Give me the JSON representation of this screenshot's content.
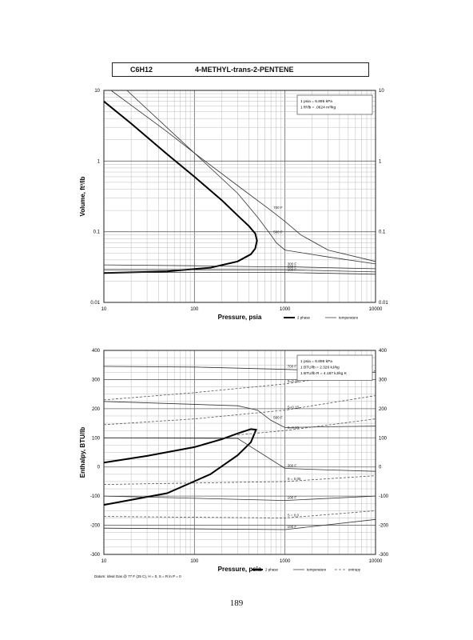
{
  "header": {
    "formula": "C6H12",
    "compound": "4-METHYL-trans-2-PENTENE"
  },
  "page_number": "189",
  "chart_data": [
    {
      "type": "line",
      "xscale": "log",
      "yscale": "log",
      "xlabel": "Pressure,  psia",
      "ylabel": "Volume,  ft^3/lb",
      "xlim": [
        10,
        10000
      ],
      "ylim": [
        0.01,
        10
      ],
      "x_ticks": [
        "10",
        "100",
        "1000",
        "10000"
      ],
      "y_ticks": [
        "0.01",
        "0.1",
        "1",
        "10"
      ],
      "y_ticks_right": [
        "0.01",
        "0.1",
        "1",
        "10"
      ],
      "conversions": [
        "1 psia  =  6.895 kPa",
        "1 ft^3/lb  =  .0624 m^3/kg"
      ],
      "legend": [
        "2 phase",
        "temperature"
      ],
      "series": [
        {
          "name": "2 phase",
          "style": "bold",
          "points": [
            [
              10,
              7
            ],
            [
              20,
              3.4
            ],
            [
              50,
              1.25
            ],
            [
              100,
              0.6
            ],
            [
              200,
              0.28
            ],
            [
              300,
              0.17
            ],
            [
              400,
              0.12
            ],
            [
              470,
              0.094
            ],
            [
              490,
              0.075
            ],
            [
              470,
              0.058
            ],
            [
              420,
              0.048
            ],
            [
              300,
              0.038
            ],
            [
              150,
              0.031
            ],
            [
              50,
              0.0275
            ],
            [
              10,
              0.026
            ]
          ]
        },
        {
          "label": "700 F",
          "points": [
            [
              12,
              10
            ],
            [
              50,
              2.6
            ],
            [
              100,
              1.3
            ],
            [
              300,
              0.45
            ],
            [
              700,
              0.2
            ],
            [
              1000,
              0.14
            ],
            [
              1500,
              0.09
            ],
            [
              3000,
              0.055
            ],
            [
              10000,
              0.038
            ]
          ]
        },
        {
          "label": "500 F",
          "points": [
            [
              18,
              10
            ],
            [
              100,
              1.3
            ],
            [
              300,
              0.35
            ],
            [
              500,
              0.16
            ],
            [
              700,
              0.09
            ],
            [
              800,
              0.07
            ],
            [
              1000,
              0.055
            ],
            [
              3000,
              0.044
            ],
            [
              10000,
              0.035
            ]
          ]
        },
        {
          "label": "300 F",
          "points": [
            [
              10,
              0.034
            ],
            [
              100,
              0.033
            ],
            [
              500,
              0.032
            ],
            [
              1000,
              0.032
            ],
            [
              3000,
              0.031
            ],
            [
              10000,
              0.03
            ]
          ]
        },
        {
          "label": "100 F",
          "points": [
            [
              10,
              0.029
            ],
            [
              1000,
              0.029
            ],
            [
              10000,
              0.027
            ]
          ]
        },
        {
          "label": "100 F",
          "points": [
            [
              10,
              0.0265
            ],
            [
              1000,
              0.0265
            ],
            [
              10000,
              0.025
            ]
          ]
        }
      ]
    },
    {
      "type": "line",
      "xscale": "log",
      "yscale": "linear",
      "xlabel": "Pressure,  psia",
      "ylabel": "Enthalpy, BTU/lb",
      "xlim": [
        10,
        10000
      ],
      "ylim": [
        -300,
        400
      ],
      "x_ticks": [
        "10",
        "100",
        "1000",
        "10000"
      ],
      "y_ticks": [
        "-300",
        "-200",
        "-100",
        "0",
        "100",
        "200",
        "300",
        "400"
      ],
      "conversions": [
        "1 psia  =  6.895 kPa",
        "1 BTU/lb  =  2.326 kJ/kg",
        "1 BTU/lb R  =  4.187 kJ/kg K"
      ],
      "legend": [
        "2 phase",
        "temperature",
        "entropy"
      ],
      "datum_note": "Datum: Ideal Gas @ 77 F (25 C),  H = 0,  S = R ln P = 0",
      "series": [
        {
          "name": "2 phase",
          "style": "bold",
          "points": [
            [
              10,
              15
            ],
            [
              30,
              38
            ],
            [
              100,
              68
            ],
            [
              200,
              95
            ],
            [
              300,
              115
            ],
            [
              420,
              130
            ],
            [
              480,
              128
            ],
            [
              420,
              85
            ],
            [
              300,
              40
            ],
            [
              150,
              -25
            ],
            [
              50,
              -90
            ],
            [
              10,
              -130
            ]
          ]
        },
        {
          "label": "700 F",
          "points": [
            [
              10,
              345
            ],
            [
              100,
              343
            ],
            [
              1000,
              335
            ],
            [
              10000,
              325
            ]
          ]
        },
        {
          "label": "500 F",
          "points": [
            [
              10,
              225
            ],
            [
              300,
              210
            ],
            [
              500,
              195
            ],
            [
              700,
              160
            ],
            [
              1000,
              135
            ],
            [
              3000,
              138
            ],
            [
              10000,
              140
            ]
          ]
        },
        {
          "label": "300 F",
          "points": [
            [
              10,
              100
            ],
            [
              300,
              98
            ],
            [
              1000,
              -5
            ],
            [
              3000,
              -10
            ],
            [
              10000,
              -15
            ]
          ]
        },
        {
          "label": "100 F",
          "points": [
            [
              10,
              -100
            ],
            [
              1000,
              -115
            ],
            [
              10000,
              -100
            ]
          ]
        },
        {
          "label": "100 F",
          "points": [
            [
              10,
              -210
            ],
            [
              1000,
              -215
            ],
            [
              10000,
              -180
            ]
          ]
        },
        {
          "label": "S=0.25",
          "dashed": true,
          "points": [
            [
              10,
              230
            ],
            [
              100,
              255
            ],
            [
              1000,
              285
            ],
            [
              10000,
              330
            ]
          ]
        },
        {
          "label": "S=0.15",
          "dashed": true,
          "points": [
            [
              10,
              145
            ],
            [
              100,
              165
            ],
            [
              1000,
              195
            ],
            [
              10000,
              245
            ]
          ]
        },
        {
          "label": "S=0.10",
          "dashed": true,
          "points": [
            [
              300,
              110
            ],
            [
              1000,
              125
            ],
            [
              10000,
              165
            ]
          ]
        },
        {
          "label": "S = 0.05",
          "dashed": true,
          "points": [
            [
              10,
              -60
            ],
            [
              1000,
              -50
            ],
            [
              10000,
              -30
            ]
          ]
        },
        {
          "label": "S = 0.0",
          "dashed": true,
          "points": [
            [
              10,
              -170
            ],
            [
              1000,
              -175
            ],
            [
              10000,
              -150
            ]
          ]
        }
      ]
    }
  ]
}
